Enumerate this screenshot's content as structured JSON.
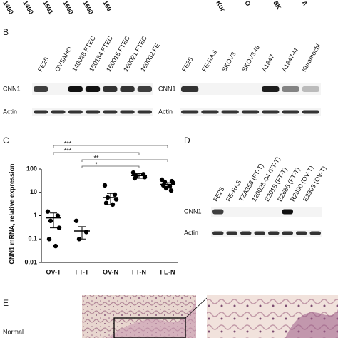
{
  "panel_a": {
    "left_lanes_cut": [
      "1400",
      "1400",
      "1501",
      "1600",
      "1600",
      "160"
    ],
    "right_lanes_cut": [
      "Kur",
      "O",
      "SK",
      "A"
    ]
  },
  "panel_b": {
    "label": "B",
    "left_lanes": [
      "FE25",
      "OVSAHO",
      "140028 FTEC",
      "150134 FTEC",
      "160015 FTEC",
      "160021 FTEC",
      "160032 FE"
    ],
    "right_lanes": [
      "FE25",
      "FE-RAS",
      "SKOV3",
      "SKOV3-I6",
      "A1847",
      "A1847-I4",
      "Kuramochi"
    ],
    "left_rows": [
      "CNN1",
      "Actin"
    ],
    "right_rows": [
      "CNN1",
      "Actin"
    ]
  },
  "chart_data": {
    "type": "scatter",
    "panel_label": "C",
    "y_label": "CNN1 mRNA, relative expression",
    "categories": [
      "OV-T",
      "FT-T",
      "OV-N",
      "FT-N",
      "FE-N"
    ],
    "points": [
      [
        1.5,
        1.0,
        0.6,
        0.3,
        0.1,
        0.05
      ],
      [
        0.6,
        0.2,
        0.1
      ],
      [
        20,
        8,
        6,
        5,
        3.5,
        3
      ],
      [
        70,
        60,
        50,
        45,
        40
      ],
      [
        35,
        30,
        28,
        25,
        20,
        18,
        15,
        12
      ]
    ],
    "means": [
      0.8,
      0.22,
      6,
      52,
      22
    ],
    "errors": [
      0.5,
      0.12,
      3,
      12,
      4
    ],
    "log_scale": true,
    "ylim": [
      0.01,
      100
    ],
    "yticks": [
      0.01,
      0.1,
      1,
      10,
      100
    ],
    "significance_labels": [
      "***",
      "***",
      "**",
      "*"
    ],
    "point_color": "#000000"
  },
  "panel_d": {
    "label": "D",
    "lanes": [
      "FE25",
      "FE-RAS",
      "TZA358 (FT-T)",
      "120025-04 (FT-T)",
      "E2018 (FT-T)",
      "E2686 (FT-T)",
      "R2890 (OV-T)",
      "E2903 (OV-T)"
    ],
    "rows": [
      "CNN1",
      "Actin"
    ]
  },
  "panel_e": {
    "label": "E",
    "row_label": "Normal"
  }
}
